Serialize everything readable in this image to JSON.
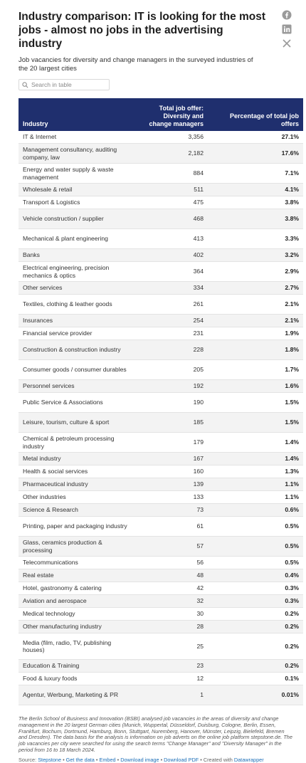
{
  "title": "Industry comparison: IT is looking for the most jobs - almost no jobs in the advertising industry",
  "subtitle": "Job vacancies for diversity and change managers in the surveyed industries of the 20 largest cities",
  "search": {
    "placeholder": "Search in table"
  },
  "social": [
    "facebook-icon",
    "linkedin-icon",
    "x-icon"
  ],
  "colors": {
    "header_bg": "#1f2f6e",
    "header_text": "#ffffff",
    "stripe": "#f3f3f3",
    "link": "#1d6fb8"
  },
  "chart_data": {
    "type": "table",
    "columns": [
      "Industry",
      "Total job offer: Diversity and change managers",
      "Percentage of total job offers"
    ],
    "rows": [
      [
        "IT & Internet",
        "3,356",
        "27.1%"
      ],
      [
        "Management consultancy, auditing company, law",
        "2,182",
        "17.6%"
      ],
      [
        "Energy and water supply & waste management",
        "884",
        "7.1%"
      ],
      [
        "Wholesale & retail",
        "511",
        "4.1%"
      ],
      [
        "Transport & Logistics",
        "475",
        "3.8%"
      ],
      [
        "Vehicle construction / supplier",
        "468",
        "3.8%"
      ],
      [
        "Mechanical & plant engineering",
        "413",
        "3.3%"
      ],
      [
        "Banks",
        "402",
        "3.2%"
      ],
      [
        "Electrical engineering, precision mechanics & optics",
        "364",
        "2.9%"
      ],
      [
        "Other services",
        "334",
        "2.7%"
      ],
      [
        "Textiles, clothing & leather goods",
        "261",
        "2.1%"
      ],
      [
        "Insurances",
        "254",
        "2.1%"
      ],
      [
        "Financial service provider",
        "231",
        "1.9%"
      ],
      [
        "Construction & construction industry",
        "228",
        "1.8%"
      ],
      [
        "Consumer goods / consumer durables",
        "205",
        "1.7%"
      ],
      [
        "Personnel services",
        "192",
        "1.6%"
      ],
      [
        "Public Service & Associations",
        "190",
        "1.5%"
      ],
      [
        "Leisure, tourism, culture & sport",
        "185",
        "1.5%"
      ],
      [
        "Chemical & petroleum processing industry",
        "179",
        "1.4%"
      ],
      [
        "Metal industry",
        "167",
        "1.4%"
      ],
      [
        "Health & social services",
        "160",
        "1.3%"
      ],
      [
        "Pharmaceutical industry",
        "139",
        "1.1%"
      ],
      [
        "Other industries",
        "133",
        "1.1%"
      ],
      [
        "Science & Research",
        "73",
        "0.6%"
      ],
      [
        "Printing, paper and packaging industry",
        "61",
        "0.5%"
      ],
      [
        "Glass, ceramics production & processing",
        "57",
        "0.5%"
      ],
      [
        "Telecommunications",
        "56",
        "0.5%"
      ],
      [
        "Real estate",
        "48",
        "0.4%"
      ],
      [
        "Hotel, gastronomy & catering",
        "42",
        "0.3%"
      ],
      [
        "Aviation and aerospace",
        "32",
        "0.3%"
      ],
      [
        "Medical technology",
        "30",
        "0.2%"
      ],
      [
        "Other manufacturing industry",
        "28",
        "0.2%"
      ],
      [
        "Media (film, radio, TV, publishing houses)",
        "25",
        "0.2%"
      ],
      [
        "Education & Training",
        "23",
        "0.2%"
      ],
      [
        "Food & luxury foods",
        "12",
        "0.1%"
      ],
      [
        "Agentur, Werbung, Marketing & PR",
        "1",
        "0.01%"
      ]
    ]
  },
  "notes": "The Berlin School of Business and Innovation (BSBI) analysed job vacancies in the areas of diversity and change management in the 20 largest German cities (Munich, Wuppertal, Düsseldorf, Duisburg, Cologne, Berlin, Essen, Frankfurt, Bochum, Dortmund, Hamburg, Bonn, Stuttgart, Nuremberg, Hanover, Münster, Leipzig, Bielefeld, Bremen and Dresden). The data basis for the analysis is information on job adverts on the online job platform stepstone.de. The job vacancies per city were searched for using the search terms \"Change Manager\" and \"Diversity Manager\" in the period from 16 to 18 March 2024.",
  "footer": {
    "source_label": "Source: ",
    "source_link": "Stepstone",
    "links": [
      "Get the data",
      "Embed",
      "Download image",
      "Download PDF"
    ],
    "created_label": "Created with ",
    "created_link": "Datawrapper"
  }
}
